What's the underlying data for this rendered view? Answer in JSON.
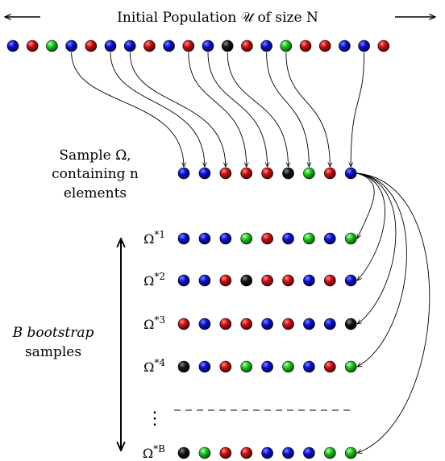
{
  "population": {
    "title": "Initial Population 𝒰 of size N",
    "balls": [
      "blue",
      "red",
      "green",
      "blue",
      "red",
      "blue",
      "blue",
      "red",
      "blue",
      "red",
      "blue",
      "black",
      "red",
      "blue",
      "green",
      "red",
      "red",
      "blue",
      "blue",
      "red"
    ]
  },
  "sample": {
    "label_line1": "Sample Ω,",
    "label_line2": "containing n",
    "label_line3": "elements",
    "balls": [
      "blue",
      "blue",
      "red",
      "red",
      "red",
      "black",
      "green",
      "red",
      "blue"
    ],
    "sources": [
      3,
      5,
      6,
      9,
      10,
      11,
      13,
      14,
      18
    ]
  },
  "bootstrap": {
    "axis_label_line1": "B bootstrap",
    "axis_label_line2": "samples",
    "ellipsis": "⋮",
    "rows": [
      {
        "label": "Ω*1",
        "balls": [
          "blue",
          "blue",
          "blue",
          "green",
          "red",
          "blue",
          "green",
          "blue",
          "green"
        ]
      },
      {
        "label": "Ω*2",
        "balls": [
          "blue",
          "blue",
          "red",
          "black",
          "red",
          "red",
          "blue",
          "red",
          "blue"
        ]
      },
      {
        "label": "Ω*3",
        "balls": [
          "red",
          "blue",
          "red",
          "red",
          "blue",
          "red",
          "blue",
          "blue",
          "black"
        ]
      },
      {
        "label": "Ω*4",
        "balls": [
          "black",
          "blue",
          "red",
          "green",
          "blue",
          "green",
          "blue",
          "red",
          "green"
        ]
      },
      {
        "label": "Ω*B",
        "balls": [
          "black",
          "green",
          "red",
          "red",
          "blue",
          "blue",
          "blue",
          "green",
          "green"
        ]
      }
    ]
  },
  "colors": {
    "blue": "#0a10c8",
    "red": "#c40f12",
    "green": "#1cc21c",
    "black": "#141414"
  }
}
